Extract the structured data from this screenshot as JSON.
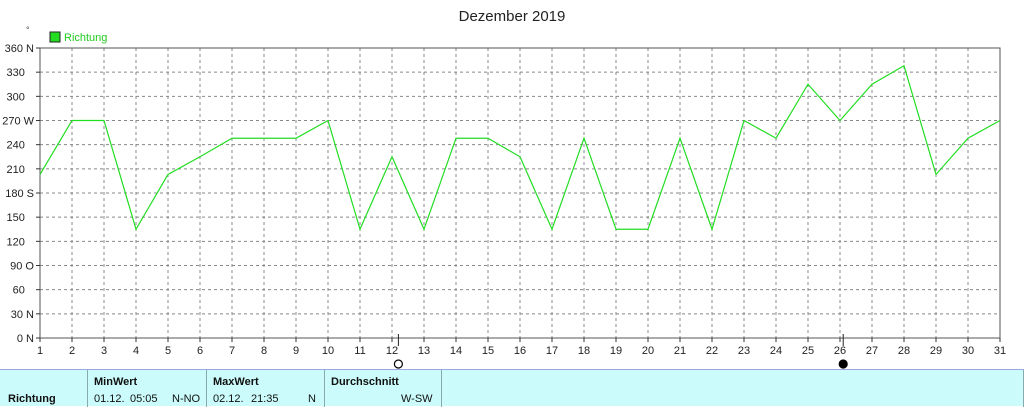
{
  "chart_data": {
    "type": "line",
    "title": "Dezember 2019",
    "unit_symbol": "°",
    "xlim": [
      1,
      31
    ],
    "ylim": [
      0,
      360
    ],
    "grid": true,
    "legend_position": "top-left",
    "x": [
      1,
      2,
      3,
      4,
      5,
      6,
      7,
      8,
      9,
      10,
      11,
      12,
      13,
      14,
      15,
      16,
      17,
      18,
      19,
      20,
      21,
      22,
      23,
      24,
      25,
      26,
      27,
      28,
      29,
      30,
      31
    ],
    "y_ticks": [
      {
        "value": 0,
        "label": "0",
        "dir": "N"
      },
      {
        "value": 30,
        "label": "30",
        "dir": "N"
      },
      {
        "value": 60,
        "label": "60",
        "dir": ""
      },
      {
        "value": 90,
        "label": "90",
        "dir": "O"
      },
      {
        "value": 120,
        "label": "120",
        "dir": ""
      },
      {
        "value": 150,
        "label": "150",
        "dir": ""
      },
      {
        "value": 180,
        "label": "180",
        "dir": "S"
      },
      {
        "value": 210,
        "label": "210",
        "dir": ""
      },
      {
        "value": 240,
        "label": "240",
        "dir": ""
      },
      {
        "value": 270,
        "label": "270",
        "dir": "W"
      },
      {
        "value": 300,
        "label": "300",
        "dir": ""
      },
      {
        "value": 330,
        "label": "330",
        "dir": ""
      },
      {
        "value": 360,
        "label": "360",
        "dir": "N"
      }
    ],
    "series": [
      {
        "name": "Richtung",
        "color": "#22dd22",
        "values": [
          203,
          270,
          270,
          135,
          203,
          225,
          248,
          248,
          248,
          270,
          135,
          225,
          135,
          248,
          248,
          225,
          135,
          248,
          135,
          135,
          248,
          135,
          270,
          248,
          315,
          270,
          315,
          338,
          203,
          248,
          270
        ]
      }
    ],
    "moon_phases": [
      {
        "day": 12.2,
        "phase": "first-quarter",
        "symbol": "◯"
      },
      {
        "day": 26.1,
        "phase": "new-moon",
        "symbol": "●"
      }
    ]
  },
  "footer": {
    "row_label": "Richtung",
    "min": {
      "header": "MinWert",
      "date": "01.12.",
      "time": "05:05",
      "value": "N-NO"
    },
    "max": {
      "header": "MaxWert",
      "date": "02.12.",
      "time": "21:35",
      "value": "N"
    },
    "avg": {
      "header": "Durchschnitt",
      "value": "W-SW"
    }
  }
}
